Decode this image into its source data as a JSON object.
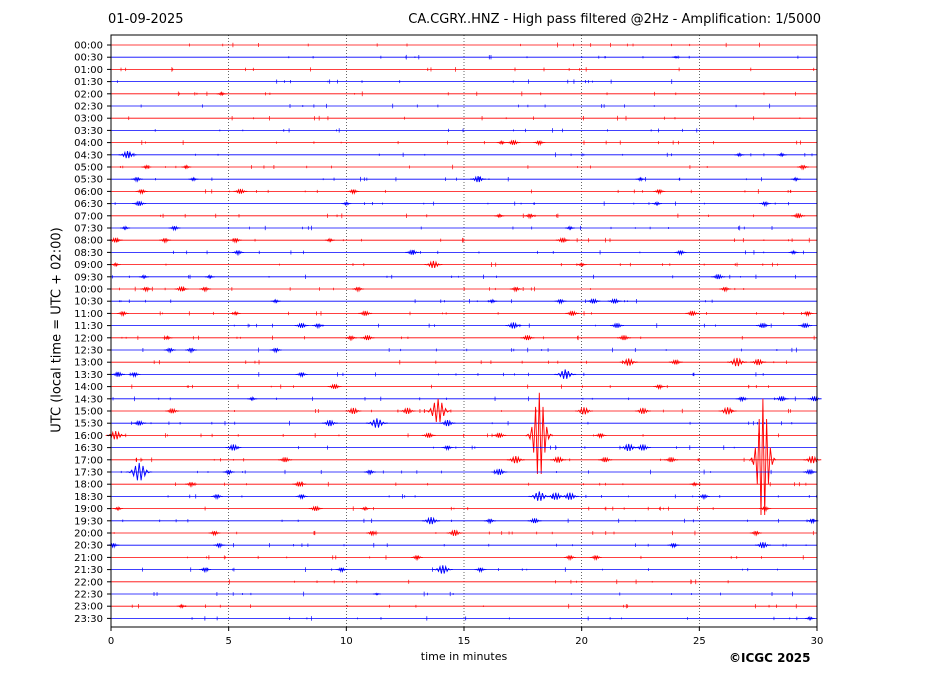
{
  "header": {
    "date": "01-09-2025",
    "title": "CA.CGRY..HNZ - High pass filtered @2Hz - Amplification: 1/5000"
  },
  "footer": {
    "copyright": "©ICGC 2025"
  },
  "chart_data": {
    "type": "line",
    "title": "CA.CGRY..HNZ - High pass filtered @2Hz - Amplification: 1/5000",
    "xlabel": "time in minutes",
    "ylabel": "UTC (local time = UTC + 02:00)",
    "xlim": [
      0,
      30
    ],
    "xticks": [
      0,
      5,
      10,
      15,
      20,
      25,
      30
    ],
    "grid_x": true,
    "grid_style": "dotted vertical lines at 5-minute intervals",
    "row_colors": [
      "#ff0000",
      "#0000ff"
    ],
    "rows": [
      {
        "label": "00:00",
        "color": "#ff0000",
        "events": []
      },
      {
        "label": "00:30",
        "color": "#0000ff",
        "events": [
          {
            "t": 24.0,
            "amp": 0.1
          }
        ]
      },
      {
        "label": "01:00",
        "color": "#ff0000",
        "events": []
      },
      {
        "label": "01:30",
        "color": "#0000ff",
        "events": []
      },
      {
        "label": "02:00",
        "color": "#ff0000",
        "events": [
          {
            "t": 4.7,
            "amp": 0.2
          }
        ]
      },
      {
        "label": "02:30",
        "color": "#0000ff",
        "events": []
      },
      {
        "label": "03:00",
        "color": "#ff0000",
        "events": []
      },
      {
        "label": "03:30",
        "color": "#0000ff",
        "events": []
      },
      {
        "label": "04:00",
        "color": "#ff0000",
        "events": [
          {
            "t": 16.6,
            "amp": 0.2
          },
          {
            "t": 17.1,
            "amp": 0.4
          },
          {
            "t": 18.2,
            "amp": 0.3
          }
        ]
      },
      {
        "label": "04:30",
        "color": "#0000ff",
        "events": [
          {
            "t": 0.7,
            "amp": 0.6
          },
          {
            "t": 26.7,
            "amp": 0.2
          },
          {
            "t": 28.5,
            "amp": 0.2
          }
        ]
      },
      {
        "label": "05:00",
        "color": "#ff0000",
        "events": [
          {
            "t": 1.5,
            "amp": 0.2
          },
          {
            "t": 3.2,
            "amp": 0.2
          },
          {
            "t": 29.4,
            "amp": 0.3
          }
        ]
      },
      {
        "label": "05:30",
        "color": "#0000ff",
        "events": [
          {
            "t": 1.1,
            "amp": 0.3
          },
          {
            "t": 3.5,
            "amp": 0.2
          },
          {
            "t": 15.6,
            "amp": 0.5
          },
          {
            "t": 22.5,
            "amp": 0.2
          },
          {
            "t": 29.1,
            "amp": 0.2
          }
        ]
      },
      {
        "label": "06:00",
        "color": "#ff0000",
        "events": [
          {
            "t": 1.3,
            "amp": 0.3
          },
          {
            "t": 5.5,
            "amp": 0.4
          },
          {
            "t": 10.3,
            "amp": 0.3
          },
          {
            "t": 23.3,
            "amp": 0.3
          }
        ]
      },
      {
        "label": "06:30",
        "color": "#0000ff",
        "events": [
          {
            "t": 1.2,
            "amp": 0.4
          },
          {
            "t": 10.0,
            "amp": 0.2
          },
          {
            "t": 23.2,
            "amp": 0.2
          },
          {
            "t": 27.8,
            "amp": 0.3
          }
        ]
      },
      {
        "label": "07:00",
        "color": "#ff0000",
        "events": [
          {
            "t": 16.5,
            "amp": 0.2
          },
          {
            "t": 17.8,
            "amp": 0.3
          },
          {
            "t": 29.2,
            "amp": 0.4
          }
        ]
      },
      {
        "label": "07:30",
        "color": "#0000ff",
        "events": [
          {
            "t": 0.6,
            "amp": 0.2
          },
          {
            "t": 2.7,
            "amp": 0.3
          },
          {
            "t": 19.5,
            "amp": 0.2
          }
        ]
      },
      {
        "label": "08:00",
        "color": "#ff0000",
        "events": [
          {
            "t": 0.2,
            "amp": 0.4
          },
          {
            "t": 2.3,
            "amp": 0.3
          },
          {
            "t": 5.3,
            "amp": 0.3
          },
          {
            "t": 9.3,
            "amp": 0.2
          },
          {
            "t": 19.2,
            "amp": 0.4
          }
        ]
      },
      {
        "label": "08:30",
        "color": "#0000ff",
        "events": [
          {
            "t": 5.4,
            "amp": 0.3
          },
          {
            "t": 12.8,
            "amp": 0.4
          },
          {
            "t": 24.2,
            "amp": 0.3
          },
          {
            "t": 29.0,
            "amp": 0.2
          }
        ]
      },
      {
        "label": "09:00",
        "color": "#ff0000",
        "events": [
          {
            "t": 0.2,
            "amp": 0.2
          },
          {
            "t": 13.7,
            "amp": 0.6
          },
          {
            "t": 20.0,
            "amp": 0.2
          }
        ]
      },
      {
        "label": "09:30",
        "color": "#0000ff",
        "events": [
          {
            "t": 1.4,
            "amp": 0.2
          },
          {
            "t": 4.2,
            "amp": 0.2
          },
          {
            "t": 25.8,
            "amp": 0.4
          }
        ]
      },
      {
        "label": "10:00",
        "color": "#ff0000",
        "events": [
          {
            "t": 1.5,
            "amp": 0.3
          },
          {
            "t": 3.0,
            "amp": 0.4
          },
          {
            "t": 4.0,
            "amp": 0.3
          },
          {
            "t": 10.5,
            "amp": 0.3
          },
          {
            "t": 17.2,
            "amp": 0.3
          },
          {
            "t": 26.1,
            "amp": 0.3
          }
        ]
      },
      {
        "label": "10:30",
        "color": "#0000ff",
        "events": [
          {
            "t": 7.0,
            "amp": 0.2
          },
          {
            "t": 16.2,
            "amp": 0.2
          },
          {
            "t": 19.1,
            "amp": 0.3
          },
          {
            "t": 20.5,
            "amp": 0.4
          },
          {
            "t": 21.4,
            "amp": 0.4
          }
        ]
      },
      {
        "label": "11:00",
        "color": "#ff0000",
        "events": [
          {
            "t": 0.5,
            "amp": 0.3
          },
          {
            "t": 5.3,
            "amp": 0.2
          },
          {
            "t": 10.8,
            "amp": 0.4
          },
          {
            "t": 19.6,
            "amp": 0.4
          },
          {
            "t": 24.7,
            "amp": 0.4
          },
          {
            "t": 29.6,
            "amp": 0.3
          }
        ]
      },
      {
        "label": "11:30",
        "color": "#0000ff",
        "events": [
          {
            "t": 8.1,
            "amp": 0.4
          },
          {
            "t": 8.8,
            "amp": 0.3
          },
          {
            "t": 17.1,
            "amp": 0.5
          },
          {
            "t": 21.5,
            "amp": 0.4
          },
          {
            "t": 27.7,
            "amp": 0.4
          },
          {
            "t": 29.5,
            "amp": 0.4
          }
        ]
      },
      {
        "label": "12:00",
        "color": "#ff0000",
        "events": [
          {
            "t": 2.4,
            "amp": 0.2
          },
          {
            "t": 10.2,
            "amp": 0.3
          },
          {
            "t": 10.9,
            "amp": 0.4
          },
          {
            "t": 17.7,
            "amp": 0.4
          },
          {
            "t": 21.8,
            "amp": 0.4
          }
        ]
      },
      {
        "label": "12:30",
        "color": "#0000ff",
        "events": [
          {
            "t": 2.5,
            "amp": 0.3
          },
          {
            "t": 3.4,
            "amp": 0.3
          },
          {
            "t": 7.0,
            "amp": 0.3
          }
        ]
      },
      {
        "label": "13:00",
        "color": "#ff0000",
        "events": [
          {
            "t": 22.0,
            "amp": 0.6
          },
          {
            "t": 24.0,
            "amp": 0.4
          },
          {
            "t": 26.6,
            "amp": 0.7
          },
          {
            "t": 27.5,
            "amp": 0.5
          }
        ]
      },
      {
        "label": "13:30",
        "color": "#0000ff",
        "events": [
          {
            "t": 0.3,
            "amp": 0.4
          },
          {
            "t": 1.0,
            "amp": 0.3
          },
          {
            "t": 8.1,
            "amp": 0.3
          },
          {
            "t": 19.3,
            "amp": 0.8
          }
        ]
      },
      {
        "label": "14:00",
        "color": "#ff0000",
        "events": [
          {
            "t": 9.5,
            "amp": 0.4
          },
          {
            "t": 23.3,
            "amp": 0.3
          }
        ]
      },
      {
        "label": "14:30",
        "color": "#0000ff",
        "events": [
          {
            "t": 6.0,
            "amp": 0.2
          },
          {
            "t": 26.8,
            "amp": 0.3
          },
          {
            "t": 28.5,
            "amp": 0.4
          },
          {
            "t": 29.9,
            "amp": 0.4
          }
        ]
      },
      {
        "label": "15:00",
        "color": "#ff0000",
        "events": [
          {
            "t": 2.6,
            "amp": 0.4
          },
          {
            "t": 10.3,
            "amp": 0.5
          },
          {
            "t": 12.6,
            "amp": 0.5
          },
          {
            "t": 13.9,
            "amp": 2.0
          },
          {
            "t": 20.1,
            "amp": 0.6
          },
          {
            "t": 22.6,
            "amp": 0.5
          },
          {
            "t": 26.2,
            "amp": 0.6
          }
        ]
      },
      {
        "label": "15:30",
        "color": "#0000ff",
        "events": [
          {
            "t": 1.2,
            "amp": 0.4
          },
          {
            "t": 9.3,
            "amp": 0.5
          },
          {
            "t": 11.3,
            "amp": 0.8
          },
          {
            "t": 14.3,
            "amp": 0.5
          }
        ]
      },
      {
        "label": "16:00",
        "color": "#ff0000",
        "events": [
          {
            "t": 0.2,
            "amp": 0.7
          },
          {
            "t": 13.5,
            "amp": 0.4
          },
          {
            "t": 16.5,
            "amp": 0.4
          },
          {
            "t": 18.2,
            "amp": 7.0
          },
          {
            "t": 20.8,
            "amp": 0.3
          }
        ]
      },
      {
        "label": "16:30",
        "color": "#0000ff",
        "events": [
          {
            "t": 5.2,
            "amp": 0.5
          },
          {
            "t": 14.3,
            "amp": 0.3
          },
          {
            "t": 22.0,
            "amp": 0.6
          },
          {
            "t": 22.6,
            "amp": 0.5
          }
        ]
      },
      {
        "label": "17:00",
        "color": "#ff0000",
        "events": [
          {
            "t": 7.4,
            "amp": 0.4
          },
          {
            "t": 17.2,
            "amp": 0.6
          },
          {
            "t": 19.0,
            "amp": 0.5
          },
          {
            "t": 21.0,
            "amp": 0.4
          },
          {
            "t": 23.8,
            "amp": 0.4
          },
          {
            "t": 27.7,
            "amp": 10.0
          },
          {
            "t": 29.8,
            "amp": 0.6
          }
        ]
      },
      {
        "label": "17:30",
        "color": "#0000ff",
        "events": [
          {
            "t": 1.2,
            "amp": 1.5
          },
          {
            "t": 5.0,
            "amp": 0.3
          },
          {
            "t": 11.0,
            "amp": 0.3
          },
          {
            "t": 16.5,
            "amp": 0.5
          },
          {
            "t": 29.7,
            "amp": 0.4
          }
        ]
      },
      {
        "label": "18:00",
        "color": "#ff0000",
        "events": [
          {
            "t": 3.4,
            "amp": 0.3
          },
          {
            "t": 8.0,
            "amp": 0.4
          },
          {
            "t": 24.8,
            "amp": 0.2
          }
        ]
      },
      {
        "label": "18:30",
        "color": "#0000ff",
        "events": [
          {
            "t": 4.5,
            "amp": 0.3
          },
          {
            "t": 8.1,
            "amp": 0.3
          },
          {
            "t": 18.2,
            "amp": 0.8
          },
          {
            "t": 18.9,
            "amp": 0.6
          },
          {
            "t": 19.5,
            "amp": 0.6
          },
          {
            "t": 25.2,
            "amp": 0.3
          }
        ]
      },
      {
        "label": "19:00",
        "color": "#ff0000",
        "events": [
          {
            "t": 0.3,
            "amp": 0.2
          },
          {
            "t": 8.7,
            "amp": 0.4
          },
          {
            "t": 10.8,
            "amp": 0.2
          },
          {
            "t": 27.8,
            "amp": 0.3
          }
        ]
      },
      {
        "label": "19:30",
        "color": "#0000ff",
        "events": [
          {
            "t": 13.6,
            "amp": 0.6
          },
          {
            "t": 16.1,
            "amp": 0.3
          },
          {
            "t": 18.0,
            "amp": 0.4
          },
          {
            "t": 29.8,
            "amp": 0.3
          }
        ]
      },
      {
        "label": "20:00",
        "color": "#ff0000",
        "events": [
          {
            "t": 4.4,
            "amp": 0.3
          },
          {
            "t": 11.1,
            "amp": 0.3
          },
          {
            "t": 14.6,
            "amp": 0.5
          },
          {
            "t": 27.4,
            "amp": 0.3
          }
        ]
      },
      {
        "label": "20:30",
        "color": "#0000ff",
        "events": [
          {
            "t": 0.1,
            "amp": 0.3
          },
          {
            "t": 4.6,
            "amp": 0.3
          },
          {
            "t": 23.9,
            "amp": 0.3
          },
          {
            "t": 27.7,
            "amp": 0.5
          }
        ]
      },
      {
        "label": "21:00",
        "color": "#ff0000",
        "events": [
          {
            "t": 13.0,
            "amp": 0.3
          },
          {
            "t": 19.5,
            "amp": 0.3
          },
          {
            "t": 20.6,
            "amp": 0.3
          }
        ]
      },
      {
        "label": "21:30",
        "color": "#0000ff",
        "events": [
          {
            "t": 4.0,
            "amp": 0.3
          },
          {
            "t": 9.8,
            "amp": 0.3
          },
          {
            "t": 14.1,
            "amp": 0.7
          },
          {
            "t": 15.7,
            "amp": 0.3
          }
        ]
      },
      {
        "label": "22:00",
        "color": "#ff0000",
        "events": []
      },
      {
        "label": "22:30",
        "color": "#0000ff",
        "events": [
          {
            "t": 11.3,
            "amp": 0.1
          }
        ]
      },
      {
        "label": "23:00",
        "color": "#ff0000",
        "events": [
          {
            "t": 3.0,
            "amp": 0.2
          }
        ]
      },
      {
        "label": "23:30",
        "color": "#0000ff",
        "events": [
          {
            "t": 29.7,
            "amp": 0.2
          }
        ]
      }
    ]
  }
}
